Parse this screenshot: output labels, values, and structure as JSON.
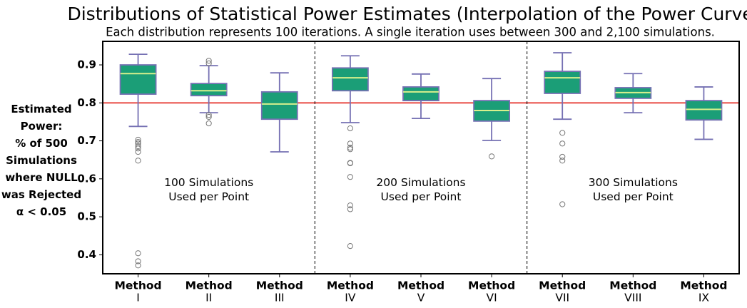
{
  "chart_data": {
    "type": "box",
    "title": "Distributions of Statistical Power Estimates (Interpolation of the Power Curve)",
    "subtitle": "Each distribution represents 100 iterations. A single iteration uses between 300 and 2,100 simulations.",
    "y_label": "Estimated\nPower:\n% of 500\nSimulations\nwhere NULL\nwas Rejected\nα < 0.05",
    "ylim": [
      0.35,
      0.962
    ],
    "yticks": [
      0.4,
      0.5,
      0.6,
      0.7,
      0.8,
      0.9
    ],
    "reference_line": {
      "value": 0.8,
      "color": "#e8403a"
    },
    "box_color": "#1b9e77",
    "edge_color": "#7570b3",
    "median_color": "#d8f08c",
    "groups": [
      {
        "label": "100 Simulations\nUsed per Point",
        "categories": [
          "Method\nI",
          "Method\nII",
          "Method\nIII"
        ],
        "boxes": [
          {
            "whislo": 0.738,
            "q1": 0.823,
            "med": 0.877,
            "q3": 0.9,
            "whishi": 0.928,
            "fliers": [
              0.703,
              0.697,
              0.693,
              0.686,
              0.68,
              0.671,
              0.648,
              0.404,
              0.383,
              0.372
            ]
          },
          {
            "whislo": 0.774,
            "q1": 0.819,
            "med": 0.832,
            "q3": 0.851,
            "whishi": 0.898,
            "fliers": [
              0.911,
              0.904,
              0.768,
              0.763,
              0.746
            ]
          },
          {
            "whislo": 0.671,
            "q1": 0.757,
            "med": 0.797,
            "q3": 0.829,
            "whishi": 0.879,
            "fliers": []
          }
        ]
      },
      {
        "label": "200 Simulations\nUsed per Point",
        "categories": [
          "Method\nIV",
          "Method\nV",
          "Method\nVI"
        ],
        "boxes": [
          {
            "whislo": 0.748,
            "q1": 0.832,
            "med": 0.866,
            "q3": 0.892,
            "whishi": 0.924,
            "fliers": [
              0.733,
              0.693,
              0.682,
              0.678,
              0.642,
              0.641,
              0.605,
              0.53,
              0.52,
              0.423
            ]
          },
          {
            "whislo": 0.759,
            "q1": 0.806,
            "med": 0.829,
            "q3": 0.842,
            "whishi": 0.876,
            "fliers": []
          },
          {
            "whislo": 0.701,
            "q1": 0.752,
            "med": 0.78,
            "q3": 0.806,
            "whishi": 0.864,
            "fliers": [
              0.659
            ]
          }
        ]
      },
      {
        "label": "300 Simulations\nUsed per Point",
        "categories": [
          "Method\nVII",
          "Method\nVIII",
          "Method\nIX"
        ],
        "boxes": [
          {
            "whislo": 0.757,
            "q1": 0.825,
            "med": 0.866,
            "q3": 0.883,
            "whishi": 0.932,
            "fliers": [
              0.721,
              0.693,
              0.658,
              0.648,
              0.533
            ]
          },
          {
            "whislo": 0.774,
            "q1": 0.812,
            "med": 0.827,
            "q3": 0.84,
            "whishi": 0.877,
            "fliers": []
          },
          {
            "whislo": 0.704,
            "q1": 0.755,
            "med": 0.783,
            "q3": 0.806,
            "whishi": 0.842,
            "fliers": []
          }
        ]
      }
    ]
  }
}
